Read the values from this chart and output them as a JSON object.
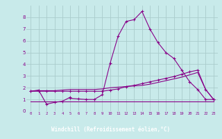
{
  "bg_color": "#c8eaea",
  "grid_color": "#aacccc",
  "line_color": "#880088",
  "xlabel": "Windchill (Refroidissement éolien,°C)",
  "xlabel_color": "#ffffff",
  "xlabel_bg": "#660066",
  "ylabel_ticks": [
    0,
    1,
    2,
    3,
    4,
    5,
    6,
    7,
    8
  ],
  "xticks": [
    0,
    1,
    2,
    3,
    4,
    5,
    6,
    7,
    8,
    9,
    10,
    11,
    12,
    13,
    14,
    15,
    16,
    17,
    18,
    19,
    20,
    21,
    22,
    23
  ],
  "xlim": [
    -0.5,
    23.5
  ],
  "ylim": [
    0,
    9
  ],
  "line1_x": [
    0,
    1,
    2,
    3,
    4,
    5,
    5,
    6,
    7,
    8,
    9,
    10,
    11,
    12,
    13,
    14,
    15,
    16,
    17,
    18,
    19,
    20,
    21,
    22,
    23
  ],
  "line1_y": [
    1.7,
    1.8,
    0.6,
    0.75,
    0.85,
    1.2,
    1.1,
    1.05,
    1.0,
    1.0,
    1.4,
    4.1,
    6.4,
    7.65,
    7.8,
    8.5,
    7.0,
    5.85,
    5.0,
    4.5,
    3.5,
    2.5,
    1.85,
    1.0,
    1.0
  ],
  "line2_x": [
    0,
    1,
    2,
    3,
    4,
    5,
    6,
    7,
    8,
    9,
    10,
    11,
    12,
    13,
    14,
    15,
    16,
    17,
    18,
    19,
    20,
    21,
    22,
    23
  ],
  "line2_y": [
    1.7,
    1.7,
    1.7,
    1.7,
    1.7,
    1.7,
    1.7,
    1.7,
    1.7,
    1.7,
    1.8,
    1.9,
    2.1,
    2.2,
    2.35,
    2.5,
    2.65,
    2.8,
    2.95,
    3.15,
    3.35,
    3.5,
    1.85,
    1.0
  ],
  "line3_x": [
    0,
    1,
    2,
    3,
    4,
    5,
    6,
    7,
    8,
    9,
    10,
    11,
    12,
    13,
    14,
    15,
    16,
    17,
    18,
    19,
    20,
    21,
    22,
    23
  ],
  "line3_y": [
    1.7,
    1.75,
    1.75,
    1.75,
    1.8,
    1.85,
    1.85,
    1.85,
    1.85,
    1.9,
    2.0,
    2.05,
    2.1,
    2.15,
    2.2,
    2.3,
    2.45,
    2.6,
    2.75,
    2.9,
    3.1,
    3.3,
    1.85,
    1.0
  ],
  "line4_x": [
    0,
    23
  ],
  "line4_y": [
    0.85,
    0.85
  ],
  "figsize": [
    3.2,
    2.0
  ],
  "dpi": 100
}
